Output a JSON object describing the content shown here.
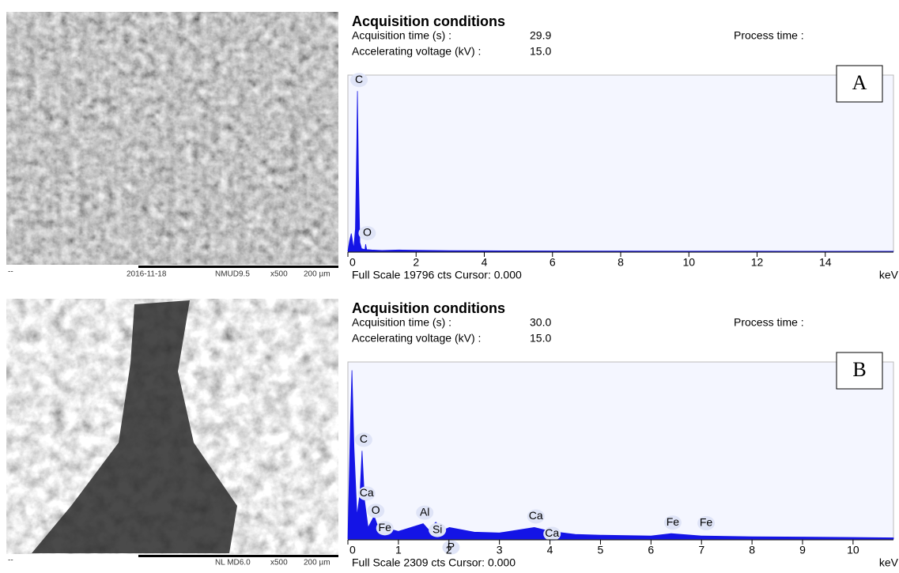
{
  "chart_data": [
    {
      "type": "area",
      "panel": "A",
      "title": "Acquisition conditions",
      "fields": [
        {
          "label": "Acquisition time (s) :",
          "value": "29.9"
        },
        {
          "label": "Accelerating voltage (kV) :",
          "value": "15.0"
        },
        {
          "label": "Process time :"
        }
      ],
      "footer": "Full Scale 19796 cts Cursor: 0.000",
      "xlabel": "keV",
      "color": "#1414e6",
      "x": [
        0,
        0.05,
        0.1,
        0.17,
        0.22,
        0.26,
        0.28,
        0.31,
        0.35,
        0.4,
        0.5,
        0.52,
        0.55,
        0.7,
        1,
        1.5,
        2,
        3,
        4,
        6,
        8,
        10,
        12,
        14,
        16
      ],
      "values": [
        0,
        1200,
        2000,
        300,
        2500,
        12000,
        18000,
        9000,
        1000,
        300,
        200,
        800,
        200,
        150,
        100,
        150,
        120,
        80,
        60,
        40,
        30,
        20,
        15,
        10,
        5
      ],
      "peaks": [
        {
          "label": "C",
          "x": 0.28
        },
        {
          "label": "O",
          "x": 0.52
        }
      ],
      "xlim": [
        0,
        16
      ],
      "ylim": [
        0,
        19796
      ],
      "xticks": [
        0,
        2,
        4,
        6,
        8,
        10,
        12,
        14
      ]
    },
    {
      "type": "area",
      "panel": "B",
      "title": "Acquisition conditions",
      "fields": [
        {
          "label": "Acquisition time (s) :",
          "value": "30.0"
        },
        {
          "label": "Accelerating voltage (kV) :",
          "value": "15.0"
        },
        {
          "label": "Process time :"
        }
      ],
      "footer": "Full Scale 2309 cts Cursor: 0.000",
      "xlabel": "keV",
      "color": "#1414e6",
      "x": [
        0,
        0.05,
        0.08,
        0.12,
        0.18,
        0.24,
        0.28,
        0.33,
        0.4,
        0.52,
        0.6,
        0.7,
        1,
        1.49,
        1.6,
        1.74,
        1.9,
        2.01,
        2.5,
        3,
        3.69,
        4.01,
        4.5,
        5,
        6,
        6.4,
        7,
        8,
        9,
        10,
        10.8
      ],
      "values": [
        0,
        1500,
        2200,
        1200,
        300,
        600,
        1150,
        500,
        150,
        300,
        150,
        150,
        100,
        200,
        120,
        220,
        120,
        150,
        90,
        80,
        150,
        100,
        60,
        50,
        40,
        70,
        40,
        30,
        25,
        20,
        15
      ],
      "peaks": [
        {
          "label": "C",
          "x": 0.28
        },
        {
          "label": "Ca",
          "x": 0.34
        },
        {
          "label": "O",
          "x": 0.52
        },
        {
          "label": "Fe",
          "x": 0.7
        },
        {
          "label": "Al",
          "x": 1.49
        },
        {
          "label": "Si",
          "x": 1.74
        },
        {
          "label": "P",
          "x": 2.01
        },
        {
          "label": "Ca",
          "x": 3.69
        },
        {
          "label": "Ca",
          "x": 4.01
        },
        {
          "label": "Fe",
          "x": 6.4
        },
        {
          "label": "Fe",
          "x": 7.06
        }
      ],
      "xlim": [
        0,
        10.8
      ],
      "ylim": [
        0,
        2309
      ],
      "xticks": [
        0,
        1,
        2,
        3,
        4,
        5,
        6,
        7,
        8,
        9,
        10
      ]
    }
  ],
  "micrographs": [
    {
      "corner": "--",
      "date": "2016-11-18",
      "label": "NMUD9.5",
      "magnification": "x500",
      "scale": "200 µm"
    },
    {
      "corner": "--",
      "label": "NL MD6.0",
      "magnification": "x500",
      "scale": "200 µm"
    }
  ]
}
